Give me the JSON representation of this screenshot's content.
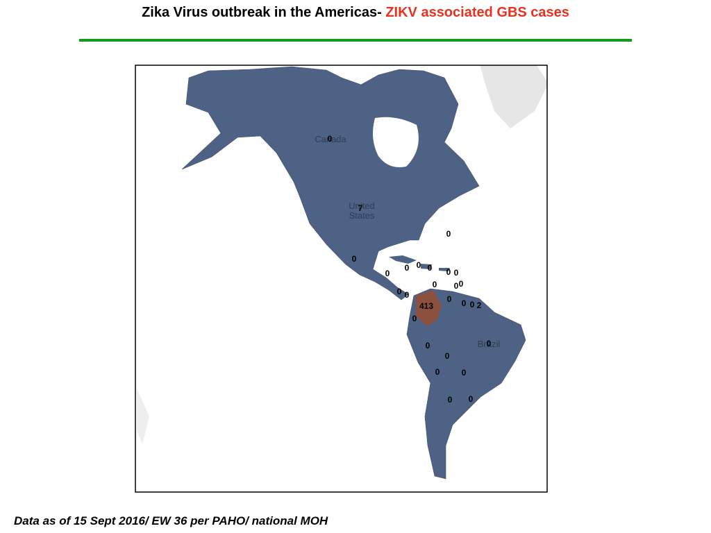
{
  "header": {
    "title": "Zika Virus outbreak in the Americas-",
    "title_highlight": "ZIKV associated GBS cases"
  },
  "map": {
    "country_labels": [
      "Canada",
      "United States",
      "Brazil"
    ],
    "case_counts": [
      0,
      7,
      0,
      0,
      0,
      0,
      0,
      0,
      0,
      0,
      0,
      0,
      0,
      0,
      0,
      413,
      0,
      0,
      0,
      2,
      0,
      0,
      0,
      0,
      0,
      0,
      0,
      0
    ]
  },
  "footer": "Data as of 15 Sept 2016/ EW 36 per PAHO/ national MOH"
}
